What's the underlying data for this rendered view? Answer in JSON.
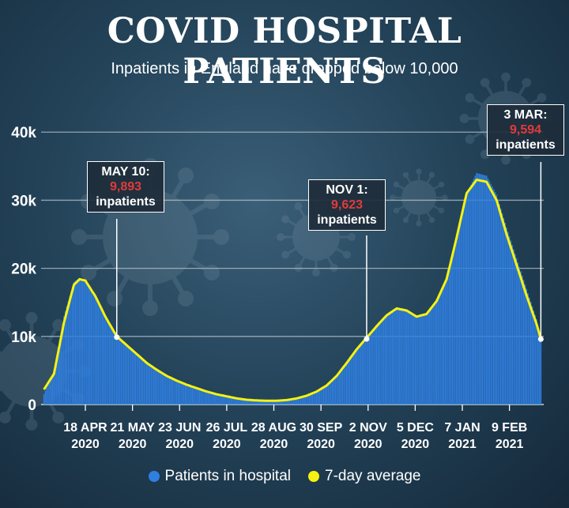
{
  "header": {
    "title": "COVID HOSPITAL PATIENTS",
    "subtitle": "Inpatients in England have dropped below 10,000"
  },
  "colors": {
    "bars": "#2f7fe0",
    "average": "#f5f211",
    "callout_value": "#e03b3b"
  },
  "callouts": [
    {
      "date": "MAY 10:",
      "value": "9,893",
      "unit": "inpatients"
    },
    {
      "date": "NOV 1:",
      "value": "9,623",
      "unit": "inpatients"
    },
    {
      "date": "3 MAR:",
      "value": "9,594",
      "unit": "inpatients"
    }
  ],
  "legend": [
    {
      "label": "Patients in hospital"
    },
    {
      "label": "7-day average"
    }
  ],
  "chart_data": {
    "type": "bar",
    "title": "COVID HOSPITAL PATIENTS",
    "subtitle": "Inpatients in England have dropped below 10,000",
    "ylim": [
      0,
      42000
    ],
    "yticks": [
      0,
      10000,
      20000,
      30000,
      40000
    ],
    "ytick_labels": [
      "0",
      "10k",
      "20k",
      "30k",
      "40k"
    ],
    "grid": true,
    "legend_position": "bottom",
    "x_ticks": [
      {
        "date": "2020-04-18",
        "label": [
          "18 APR",
          "2020"
        ]
      },
      {
        "date": "2020-05-21",
        "label": [
          "21 MAY",
          "2020"
        ]
      },
      {
        "date": "2020-06-23",
        "label": [
          "23 JUN",
          "2020"
        ]
      },
      {
        "date": "2020-07-26",
        "label": [
          "26 JUL",
          "2020"
        ]
      },
      {
        "date": "2020-08-28",
        "label": [
          "28 AUG",
          "2020"
        ]
      },
      {
        "date": "2020-09-30",
        "label": [
          "30 SEP",
          "2020"
        ]
      },
      {
        "date": "2020-11-02",
        "label": [
          "2 NOV",
          "2020"
        ]
      },
      {
        "date": "2020-12-05",
        "label": [
          "5 DEC",
          "2020"
        ]
      },
      {
        "date": "2021-01-07",
        "label": [
          "7 JAN",
          "2021"
        ]
      },
      {
        "date": "2021-02-09",
        "label": [
          "9 FEB",
          "2021"
        ]
      }
    ],
    "series": [
      {
        "name": "Patients in hospital",
        "type": "bar",
        "points": [
          [
            "2020-03-20",
            1500
          ],
          [
            "2020-03-27",
            5000
          ],
          [
            "2020-04-03",
            13000
          ],
          [
            "2020-04-10",
            18000
          ],
          [
            "2020-04-14",
            18600
          ],
          [
            "2020-04-18",
            18200
          ],
          [
            "2020-04-25",
            15800
          ],
          [
            "2020-05-02",
            12600
          ],
          [
            "2020-05-10",
            9900
          ],
          [
            "2020-05-17",
            8600
          ],
          [
            "2020-05-24",
            7300
          ],
          [
            "2020-05-31",
            6000
          ],
          [
            "2020-06-07",
            5000
          ],
          [
            "2020-06-14",
            4100
          ],
          [
            "2020-06-21",
            3400
          ],
          [
            "2020-06-28",
            2900
          ],
          [
            "2020-07-05",
            2400
          ],
          [
            "2020-07-12",
            1900
          ],
          [
            "2020-07-19",
            1500
          ],
          [
            "2020-07-26",
            1200
          ],
          [
            "2020-08-02",
            900
          ],
          [
            "2020-08-09",
            700
          ],
          [
            "2020-08-16",
            600
          ],
          [
            "2020-08-23",
            550
          ],
          [
            "2020-08-30",
            550
          ],
          [
            "2020-09-06",
            650
          ],
          [
            "2020-09-13",
            900
          ],
          [
            "2020-09-20",
            1400
          ],
          [
            "2020-09-27",
            2000
          ],
          [
            "2020-10-04",
            2900
          ],
          [
            "2020-10-11",
            4300
          ],
          [
            "2020-10-18",
            6300
          ],
          [
            "2020-10-25",
            8300
          ],
          [
            "2020-11-01",
            9600
          ],
          [
            "2020-11-08",
            11300
          ],
          [
            "2020-11-15",
            13000
          ],
          [
            "2020-11-22",
            14300
          ],
          [
            "2020-11-29",
            14000
          ],
          [
            "2020-12-06",
            13000
          ],
          [
            "2020-12-13",
            13400
          ],
          [
            "2020-12-20",
            15300
          ],
          [
            "2020-12-27",
            18600
          ],
          [
            "2021-01-03",
            24600
          ],
          [
            "2021-01-10",
            31000
          ],
          [
            "2021-01-17",
            34000
          ],
          [
            "2021-01-24",
            33600
          ],
          [
            "2021-01-31",
            30800
          ],
          [
            "2021-02-07",
            26000
          ],
          [
            "2021-02-14",
            21500
          ],
          [
            "2021-02-21",
            17000
          ],
          [
            "2021-02-28",
            12500
          ],
          [
            "2021-03-03",
            9600
          ]
        ]
      },
      {
        "name": "7-day average",
        "type": "line",
        "points": [
          [
            "2020-03-20",
            2200
          ],
          [
            "2020-03-27",
            4500
          ],
          [
            "2020-04-03",
            12000
          ],
          [
            "2020-04-10",
            17600
          ],
          [
            "2020-04-14",
            18400
          ],
          [
            "2020-04-18",
            18200
          ],
          [
            "2020-04-25",
            15900
          ],
          [
            "2020-05-02",
            12900
          ],
          [
            "2020-05-10",
            10000
          ],
          [
            "2020-05-17",
            8700
          ],
          [
            "2020-05-24",
            7400
          ],
          [
            "2020-05-31",
            6100
          ],
          [
            "2020-06-07",
            5100
          ],
          [
            "2020-06-14",
            4200
          ],
          [
            "2020-06-21",
            3500
          ],
          [
            "2020-06-28",
            2900
          ],
          [
            "2020-07-05",
            2400
          ],
          [
            "2020-07-12",
            1900
          ],
          [
            "2020-07-19",
            1500
          ],
          [
            "2020-07-26",
            1200
          ],
          [
            "2020-08-02",
            900
          ],
          [
            "2020-08-09",
            700
          ],
          [
            "2020-08-16",
            600
          ],
          [
            "2020-08-23",
            550
          ],
          [
            "2020-08-30",
            550
          ],
          [
            "2020-09-06",
            650
          ],
          [
            "2020-09-13",
            900
          ],
          [
            "2020-09-20",
            1300
          ],
          [
            "2020-09-27",
            1900
          ],
          [
            "2020-10-04",
            2800
          ],
          [
            "2020-10-11",
            4200
          ],
          [
            "2020-10-18",
            6100
          ],
          [
            "2020-10-25",
            8100
          ],
          [
            "2020-11-01",
            9800
          ],
          [
            "2020-11-08",
            11500
          ],
          [
            "2020-11-15",
            13100
          ],
          [
            "2020-11-22",
            14100
          ],
          [
            "2020-11-29",
            13800
          ],
          [
            "2020-12-06",
            12900
          ],
          [
            "2020-12-13",
            13300
          ],
          [
            "2020-12-20",
            15200
          ],
          [
            "2020-12-27",
            18400
          ],
          [
            "2021-01-03",
            24500
          ],
          [
            "2021-01-10",
            31000
          ],
          [
            "2021-01-17",
            33000
          ],
          [
            "2021-01-24",
            32700
          ],
          [
            "2021-01-31",
            30000
          ],
          [
            "2021-02-07",
            25000
          ],
          [
            "2021-02-14",
            20500
          ],
          [
            "2021-02-21",
            16000
          ],
          [
            "2021-02-28",
            11800
          ],
          [
            "2021-03-03",
            9600
          ]
        ]
      }
    ],
    "annotations": [
      {
        "date": "2020-05-10",
        "value": 9893,
        "text": "MAY 10: 9,893 inpatients"
      },
      {
        "date": "2020-11-01",
        "value": 9623,
        "text": "NOV 1: 9,623 inpatients"
      },
      {
        "date": "2021-03-03",
        "value": 9594,
        "text": "3 MAR: 9,594 inpatients"
      }
    ]
  }
}
